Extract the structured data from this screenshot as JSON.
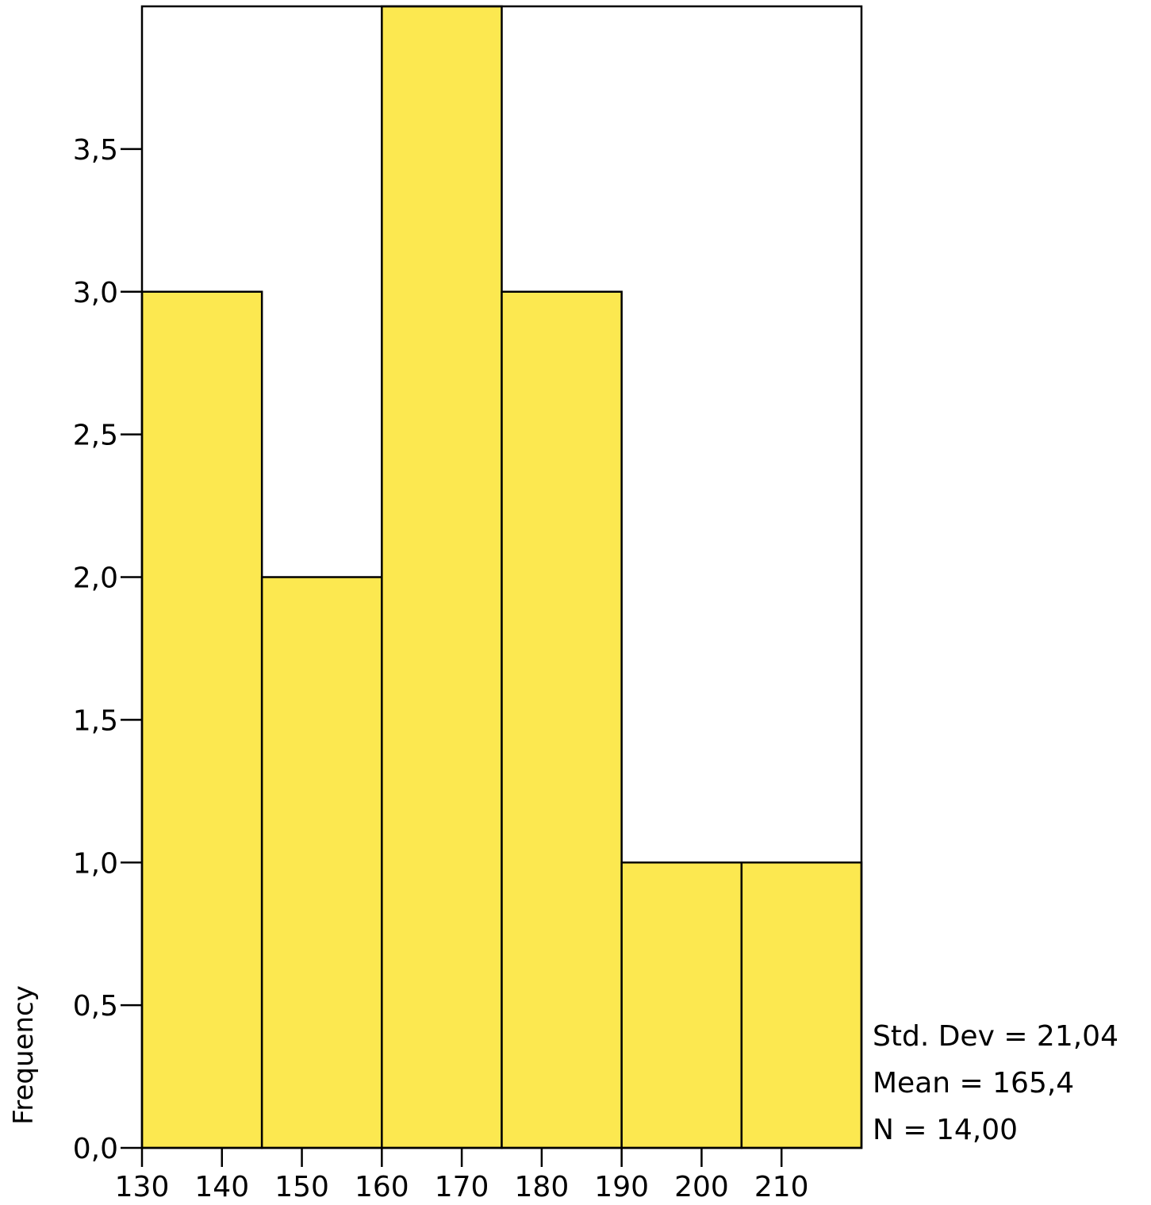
{
  "chart_data": {
    "type": "bar",
    "title": "",
    "xlabel": "",
    "ylabel": "Frequency",
    "bins": [
      {
        "start": 130,
        "end": 145,
        "count": 3
      },
      {
        "start": 145,
        "end": 160,
        "count": 2
      },
      {
        "start": 160,
        "end": 175,
        "count": 4
      },
      {
        "start": 175,
        "end": 190,
        "count": 3
      },
      {
        "start": 190,
        "end": 205,
        "count": 1
      },
      {
        "start": 205,
        "end": 220,
        "count": 1
      }
    ],
    "xlim": [
      130,
      220
    ],
    "ylim": [
      0,
      4
    ],
    "x_ticks": [
      130,
      140,
      150,
      160,
      170,
      180,
      190,
      200,
      210
    ],
    "x_tick_labels": [
      "130",
      "140",
      "150",
      "160",
      "170",
      "180",
      "190",
      "200",
      "210"
    ],
    "y_ticks": [
      0,
      0.5,
      1,
      1.5,
      2,
      2.5,
      3,
      3.5
    ],
    "y_tick_labels": [
      "0,0",
      "0,5",
      "1,0",
      "1,5",
      "2,0",
      "2,5",
      "3,0",
      "3,5"
    ],
    "bar_color": "#FCE850",
    "grid": false,
    "stats": {
      "std_dev": "Std. Dev = 21,04",
      "mean": "Mean = 165,4",
      "n": "N = 14,00"
    }
  }
}
